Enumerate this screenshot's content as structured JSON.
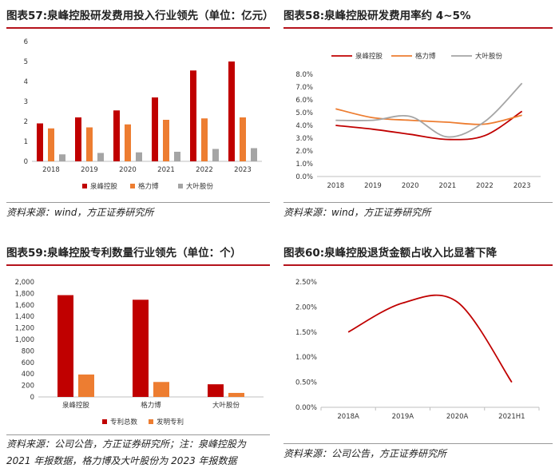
{
  "colors": {
    "quanfeng": "#c00000",
    "geli": "#ed7d31",
    "daye": "#a5a5a5",
    "accent": "#b5121b"
  },
  "chart_data": [
    {
      "id": "fig57",
      "type": "bar",
      "title": "图表57:泉峰控股研发费用投入行业领先（单位：亿元）",
      "categories": [
        "2018",
        "2019",
        "2020",
        "2021",
        "2022",
        "2023"
      ],
      "ylim": [
        0,
        6
      ],
      "yticks": [
        "0",
        "1",
        "2",
        "3",
        "4",
        "5",
        "6"
      ],
      "series": [
        {
          "name": "泉峰控股",
          "color": "#c00000",
          "values": [
            1.9,
            2.2,
            2.55,
            3.2,
            4.55,
            5.0
          ]
        },
        {
          "name": "格力博",
          "color": "#ed7d31",
          "values": [
            1.65,
            1.7,
            1.85,
            2.08,
            2.15,
            2.2
          ]
        },
        {
          "name": "大叶股份",
          "color": "#a5a5a5",
          "values": [
            0.35,
            0.42,
            0.45,
            0.48,
            0.62,
            0.66
          ]
        }
      ],
      "legend": "bottom",
      "grid": false,
      "source": "资料来源：wind，方正证券研究所"
    },
    {
      "id": "fig58",
      "type": "line",
      "title": "图表58:泉峰控股研发费用率约 4~5%",
      "categories": [
        "2018",
        "2019",
        "2020",
        "2021",
        "2022",
        "2023"
      ],
      "ylim": [
        0,
        8
      ],
      "yticks": [
        "0.0%",
        "1.0%",
        "2.0%",
        "3.0%",
        "4.0%",
        "5.0%",
        "6.0%",
        "7.0%",
        "8.0%"
      ],
      "series": [
        {
          "name": "泉峰控股",
          "color": "#c00000",
          "values": [
            4.0,
            3.7,
            3.3,
            2.9,
            3.2,
            5.1
          ]
        },
        {
          "name": "格力博",
          "color": "#ed7d31",
          "values": [
            5.3,
            4.6,
            4.4,
            4.25,
            4.1,
            4.8
          ]
        },
        {
          "name": "大叶股份",
          "color": "#a5a5a5",
          "values": [
            4.4,
            4.4,
            4.7,
            3.1,
            4.3,
            7.3
          ]
        }
      ],
      "legend": "top",
      "grid": false,
      "source": "资料来源：wind，方正证券研究所"
    },
    {
      "id": "fig59",
      "type": "bar",
      "title": "图表59:泉峰控股专利数量行业领先（单位：个）",
      "categories": [
        "泉峰控股",
        "格力博",
        "大叶股份"
      ],
      "ylim": [
        0,
        2000
      ],
      "yticks": [
        "0",
        "200",
        "400",
        "600",
        "800",
        "1,000",
        "1,200",
        "1,400",
        "1,600",
        "1,800",
        "2,000"
      ],
      "series": [
        {
          "name": "专利总数",
          "color": "#c00000",
          "values": [
            1770,
            1690,
            220
          ]
        },
        {
          "name": "发明专利",
          "color": "#ed7d31",
          "values": [
            390,
            260,
            70
          ]
        }
      ],
      "legend": "bottom",
      "grid": false,
      "source_lines": [
        "资料来源：公司公告，方正证券研究所；注：泉峰控股为",
        "2021 年报数据，格力博及大叶股份为 2023 年报数据"
      ]
    },
    {
      "id": "fig60",
      "type": "line",
      "title": "图表60:泉峰控股退货金额占收入比显著下降",
      "categories": [
        "2018A",
        "2019A",
        "2020A",
        "2021H1"
      ],
      "ylim": [
        0,
        2.5
      ],
      "yticks": [
        "0.00%",
        "0.50%",
        "1.00%",
        "1.50%",
        "2.00%",
        "2.50%"
      ],
      "series": [
        {
          "name": "",
          "color": "#c00000",
          "values": [
            1.5,
            2.08,
            2.1,
            0.5
          ]
        }
      ],
      "legend": "none",
      "grid": false,
      "source": "资料来源：公司公告，方正证券研究所"
    }
  ]
}
